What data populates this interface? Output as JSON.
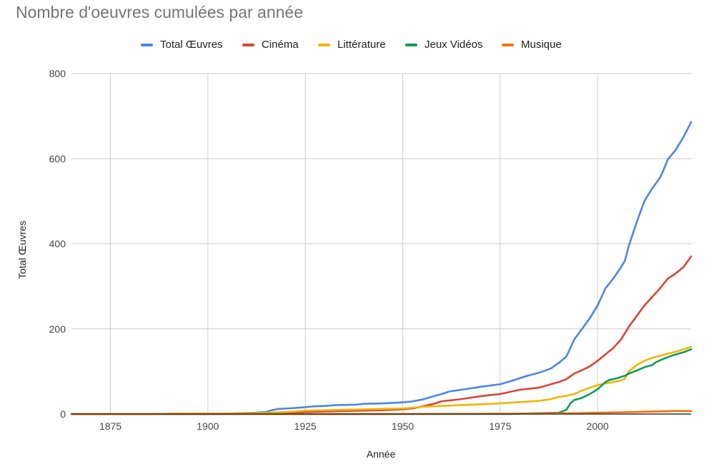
{
  "chart_data": {
    "type": "line",
    "title": "Nombre d'oeuvres cumulées par année",
    "xlabel": "Année",
    "ylabel": "Total Œuvres",
    "xlim": [
      1865,
      2024
    ],
    "ylim": [
      0,
      800
    ],
    "x_ticks": [
      "1875",
      "1900",
      "1925",
      "1950",
      "1975",
      "2000"
    ],
    "y_ticks": [
      "0",
      "200",
      "400",
      "600",
      "800"
    ],
    "grid": true,
    "legend_position": "top",
    "series": [
      {
        "name": "Total Œuvres",
        "color": "#4a86e8",
        "points": [
          [
            1865,
            0
          ],
          [
            1890,
            0
          ],
          [
            1905,
            1
          ],
          [
            1912,
            3
          ],
          [
            1915,
            5
          ],
          [
            1916,
            8
          ],
          [
            1918,
            12
          ],
          [
            1920,
            13
          ],
          [
            1922,
            14
          ],
          [
            1925,
            16
          ],
          [
            1927,
            18
          ],
          [
            1930,
            19
          ],
          [
            1933,
            21
          ],
          [
            1938,
            22
          ],
          [
            1940,
            24
          ],
          [
            1945,
            25
          ],
          [
            1949,
            27
          ],
          [
            1952,
            29
          ],
          [
            1955,
            34
          ],
          [
            1958,
            42
          ],
          [
            1960,
            47
          ],
          [
            1962,
            53
          ],
          [
            1965,
            57
          ],
          [
            1968,
            61
          ],
          [
            1970,
            64
          ],
          [
            1975,
            70
          ],
          [
            1978,
            78
          ],
          [
            1980,
            84
          ],
          [
            1982,
            90
          ],
          [
            1985,
            97
          ],
          [
            1988,
            107
          ],
          [
            1990,
            120
          ],
          [
            1992,
            135
          ],
          [
            1994,
            175
          ],
          [
            1996,
            200
          ],
          [
            1998,
            225
          ],
          [
            2000,
            255
          ],
          [
            2002,
            295
          ],
          [
            2004,
            318
          ],
          [
            2006,
            345
          ],
          [
            2007,
            360
          ],
          [
            2008,
            395
          ],
          [
            2010,
            450
          ],
          [
            2012,
            500
          ],
          [
            2014,
            530
          ],
          [
            2016,
            555
          ],
          [
            2017,
            575
          ],
          [
            2018,
            598
          ],
          [
            2020,
            620
          ],
          [
            2022,
            650
          ],
          [
            2024,
            686
          ]
        ]
      },
      {
        "name": "Cinéma",
        "color": "#db4437",
        "points": [
          [
            1865,
            0
          ],
          [
            1905,
            0
          ],
          [
            1915,
            1
          ],
          [
            1920,
            3
          ],
          [
            1925,
            5
          ],
          [
            1930,
            6
          ],
          [
            1940,
            8
          ],
          [
            1945,
            9
          ],
          [
            1950,
            11
          ],
          [
            1953,
            14
          ],
          [
            1955,
            18
          ],
          [
            1958,
            24
          ],
          [
            1960,
            30
          ],
          [
            1965,
            35
          ],
          [
            1970,
            42
          ],
          [
            1975,
            47
          ],
          [
            1978,
            53
          ],
          [
            1980,
            57
          ],
          [
            1985,
            62
          ],
          [
            1988,
            70
          ],
          [
            1990,
            75
          ],
          [
            1992,
            82
          ],
          [
            1994,
            95
          ],
          [
            1996,
            103
          ],
          [
            1998,
            112
          ],
          [
            2000,
            125
          ],
          [
            2002,
            140
          ],
          [
            2004,
            155
          ],
          [
            2006,
            175
          ],
          [
            2008,
            205
          ],
          [
            2010,
            230
          ],
          [
            2012,
            255
          ],
          [
            2014,
            275
          ],
          [
            2016,
            295
          ],
          [
            2018,
            318
          ],
          [
            2020,
            330
          ],
          [
            2022,
            345
          ],
          [
            2024,
            370
          ]
        ]
      },
      {
        "name": "Littérature",
        "color": "#f4b400",
        "points": [
          [
            1865,
            0
          ],
          [
            1888,
            0
          ],
          [
            1890,
            1
          ],
          [
            1905,
            1
          ],
          [
            1912,
            2
          ],
          [
            1918,
            4
          ],
          [
            1922,
            6
          ],
          [
            1925,
            8
          ],
          [
            1930,
            9
          ],
          [
            1935,
            10
          ],
          [
            1940,
            11
          ],
          [
            1945,
            12
          ],
          [
            1950,
            13
          ],
          [
            1955,
            17
          ],
          [
            1960,
            19
          ],
          [
            1965,
            21
          ],
          [
            1970,
            23
          ],
          [
            1975,
            25
          ],
          [
            1980,
            28
          ],
          [
            1985,
            31
          ],
          [
            1988,
            35
          ],
          [
            1990,
            40
          ],
          [
            1992,
            43
          ],
          [
            1994,
            47
          ],
          [
            1996,
            55
          ],
          [
            1998,
            62
          ],
          [
            2000,
            68
          ],
          [
            2002,
            72
          ],
          [
            2004,
            75
          ],
          [
            2006,
            79
          ],
          [
            2007,
            83
          ],
          [
            2008,
            100
          ],
          [
            2010,
            115
          ],
          [
            2012,
            125
          ],
          [
            2014,
            132
          ],
          [
            2016,
            137
          ],
          [
            2018,
            142
          ],
          [
            2020,
            146
          ],
          [
            2022,
            152
          ],
          [
            2024,
            158
          ]
        ]
      },
      {
        "name": "Jeux Vidéos",
        "color": "#0f9d58",
        "points": [
          [
            1865,
            0
          ],
          [
            1978,
            0
          ],
          [
            1980,
            1
          ],
          [
            1985,
            2
          ],
          [
            1990,
            3
          ],
          [
            1992,
            10
          ],
          [
            1993,
            25
          ],
          [
            1994,
            33
          ],
          [
            1996,
            38
          ],
          [
            1998,
            47
          ],
          [
            2000,
            58
          ],
          [
            2002,
            75
          ],
          [
            2003,
            80
          ],
          [
            2005,
            84
          ],
          [
            2007,
            90
          ],
          [
            2008,
            95
          ],
          [
            2010,
            102
          ],
          [
            2012,
            110
          ],
          [
            2014,
            115
          ],
          [
            2015,
            122
          ],
          [
            2017,
            130
          ],
          [
            2019,
            137
          ],
          [
            2022,
            145
          ],
          [
            2024,
            152
          ]
        ]
      },
      {
        "name": "Musique",
        "color": "#ff6d01",
        "points": [
          [
            1865,
            0
          ],
          [
            1950,
            0
          ],
          [
            1980,
            1
          ],
          [
            1995,
            2
          ],
          [
            2000,
            3
          ],
          [
            2005,
            4
          ],
          [
            2010,
            5
          ],
          [
            2015,
            6
          ],
          [
            2020,
            7
          ],
          [
            2024,
            7
          ]
        ]
      }
    ]
  }
}
